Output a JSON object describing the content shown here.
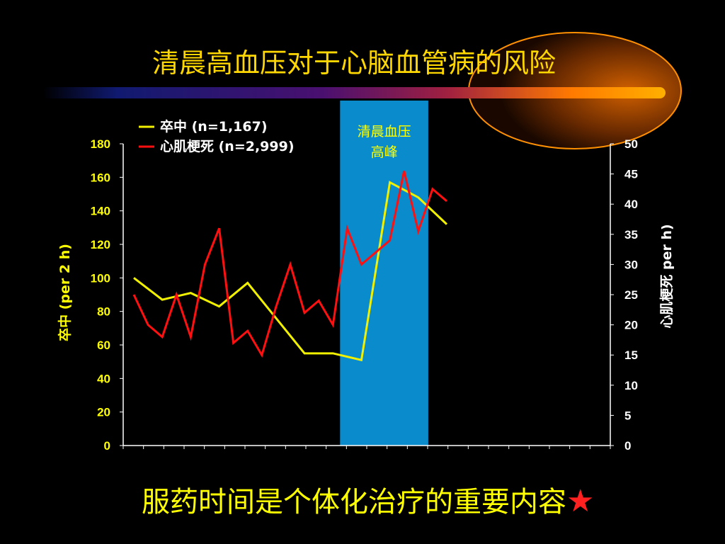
{
  "title": "清晨高血压对于心脑血管病的风险",
  "caption": "服药时间是个体化治疗的重要内容",
  "star": "★",
  "colors": {
    "stroke": "#f0f000",
    "mi": "#ff1010",
    "left_axis": "#ffff00",
    "highlight": "#0a8ccc",
    "background": "#000000"
  },
  "chart_data": {
    "type": "line",
    "x": [
      1,
      2,
      3,
      4,
      5,
      6,
      7,
      8,
      9,
      10,
      11,
      12,
      13,
      14,
      15,
      16,
      17,
      18,
      19,
      20,
      21,
      22,
      23
    ],
    "series": [
      {
        "name": "卒中 (n=1,167)",
        "axis": "left",
        "values": [
          100,
          null,
          87,
          null,
          91,
          null,
          83,
          null,
          97,
          null,
          76,
          null,
          55,
          null,
          55,
          null,
          51,
          null,
          157,
          null,
          148,
          null,
          132
        ]
      },
      {
        "name": "心肌梗死 (n=2,999)",
        "axis": "right",
        "values": [
          25,
          20,
          18,
          25,
          18,
          30,
          36,
          17,
          19,
          15,
          23,
          30,
          22,
          24,
          20,
          36,
          30,
          32,
          34,
          45.5,
          35.5,
          42.5,
          40.5
        ]
      }
    ],
    "y_left": {
      "label": "卒中 (per 2 h)",
      "ticks": [
        "0",
        "20",
        "40",
        "60",
        "80",
        "100",
        "120",
        "140",
        "160",
        "180"
      ],
      "ylim": [
        0,
        180
      ]
    },
    "y_right": {
      "label": "心肌梗死 per h)",
      "ticks": [
        "0",
        "5",
        "10",
        "15",
        "20",
        "25",
        "30",
        "35",
        "40",
        "45",
        "50"
      ],
      "ylim": [
        0,
        50
      ]
    },
    "highlight": {
      "label_line1": "清晨血压",
      "label_line2": "高峰",
      "x_range": [
        15.5,
        21.7
      ]
    },
    "legend": [
      {
        "label": "卒中 (n=1,167)",
        "color": "#f0f000"
      },
      {
        "label": "心肌梗死 (n=2,999)",
        "color": "#ff1010"
      }
    ],
    "legend_position": "top-left",
    "grid": false
  }
}
